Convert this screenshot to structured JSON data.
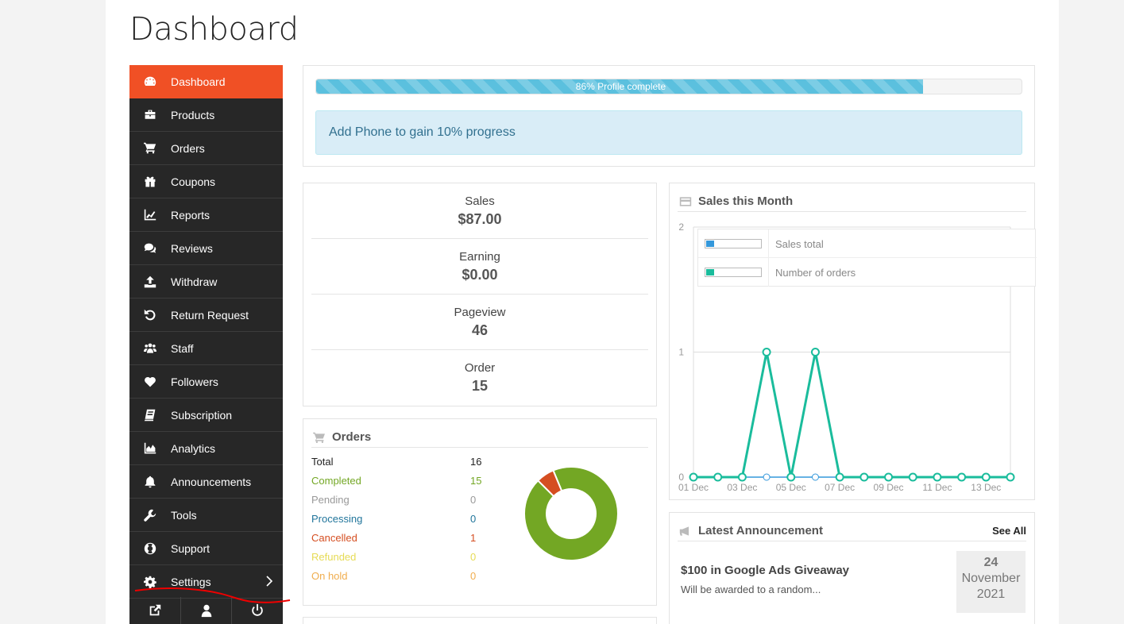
{
  "page": {
    "title": "Dashboard"
  },
  "sidebar": {
    "items": [
      {
        "label": "Dashboard",
        "icon": "dashboard-icon",
        "active": true
      },
      {
        "label": "Products",
        "icon": "briefcase-icon"
      },
      {
        "label": "Orders",
        "icon": "cart-icon"
      },
      {
        "label": "Coupons",
        "icon": "gift-icon"
      },
      {
        "label": "Reports",
        "icon": "line-chart-icon"
      },
      {
        "label": "Reviews",
        "icon": "comments-icon"
      },
      {
        "label": "Withdraw",
        "icon": "upload-icon"
      },
      {
        "label": "Return Request",
        "icon": "undo-icon"
      },
      {
        "label": "Staff",
        "icon": "users-icon"
      },
      {
        "label": "Followers",
        "icon": "heart-icon"
      },
      {
        "label": "Subscription",
        "icon": "book-icon"
      },
      {
        "label": "Analytics",
        "icon": "area-chart-icon"
      },
      {
        "label": "Announcements",
        "icon": "bell-icon"
      },
      {
        "label": "Tools",
        "icon": "wrench-icon"
      },
      {
        "label": "Support",
        "icon": "life-ring-icon"
      },
      {
        "label": "Settings",
        "icon": "gear-icon"
      }
    ],
    "footer": [
      "external-link-icon",
      "user-icon",
      "power-icon"
    ]
  },
  "profile": {
    "progress_label": "86% Profile complete",
    "progress_percent": 86,
    "hint": "Add Phone to gain 10% progress"
  },
  "stats": [
    {
      "label": "Sales",
      "value": "$87.00"
    },
    {
      "label": "Earning",
      "value": "$0.00"
    },
    {
      "label": "Pageview",
      "value": "46"
    },
    {
      "label": "Order",
      "value": "15"
    }
  ],
  "orders": {
    "title": "Orders",
    "rows": [
      {
        "label": "Total",
        "value": "16",
        "color": "#222222"
      },
      {
        "label": "Completed",
        "value": "15",
        "color": "#73a724"
      },
      {
        "label": "Pending",
        "value": "0",
        "color": "#999999"
      },
      {
        "label": "Processing",
        "value": "0",
        "color": "#21759b"
      },
      {
        "label": "Cancelled",
        "value": "1",
        "color": "#d54e21"
      },
      {
        "label": "Refunded",
        "value": "0",
        "color": "#e6db55"
      },
      {
        "label": "On hold",
        "value": "0",
        "color": "#f0ad4e"
      }
    ]
  },
  "sales_month": {
    "title": "Sales this Month",
    "legend": [
      "Sales total",
      "Number of orders"
    ]
  },
  "announcement": {
    "title": "Latest Announcement",
    "see_all": "See All",
    "item_title": "$100 in Google Ads Giveaway",
    "item_sub": "Will be awarded to a random...",
    "day": "24",
    "month": "November",
    "year": "2021"
  },
  "chart_data": [
    {
      "type": "pie",
      "categories": [
        "Completed",
        "Cancelled"
      ],
      "values": [
        15,
        1
      ],
      "colors": [
        "#73a724",
        "#d54e21"
      ],
      "donut": true
    },
    {
      "type": "line",
      "title": "Sales this Month",
      "x": [
        "01 Dec",
        "02 Dec",
        "03 Dec",
        "04 Dec",
        "05 Dec",
        "06 Dec",
        "07 Dec",
        "08 Dec",
        "09 Dec",
        "10 Dec",
        "11 Dec",
        "12 Dec",
        "13 Dec",
        "14 Dec"
      ],
      "x_tick_labels": [
        "01 Dec",
        "03 Dec",
        "05 Dec",
        "07 Dec",
        "09 Dec",
        "11 Dec",
        "13 Dec"
      ],
      "y_ticks": [
        0,
        1,
        2
      ],
      "ylim": [
        0,
        2
      ],
      "series": [
        {
          "name": "Sales total",
          "color": "#3498db",
          "values": [
            0,
            0,
            0,
            0,
            0,
            0,
            0,
            0,
            0,
            0,
            0,
            0,
            0,
            0
          ]
        },
        {
          "name": "Number of orders",
          "color": "#1abc9c",
          "values": [
            0,
            0,
            0,
            1,
            0,
            1,
            0,
            0,
            0,
            0,
            0,
            0,
            0,
            0
          ]
        }
      ]
    }
  ]
}
